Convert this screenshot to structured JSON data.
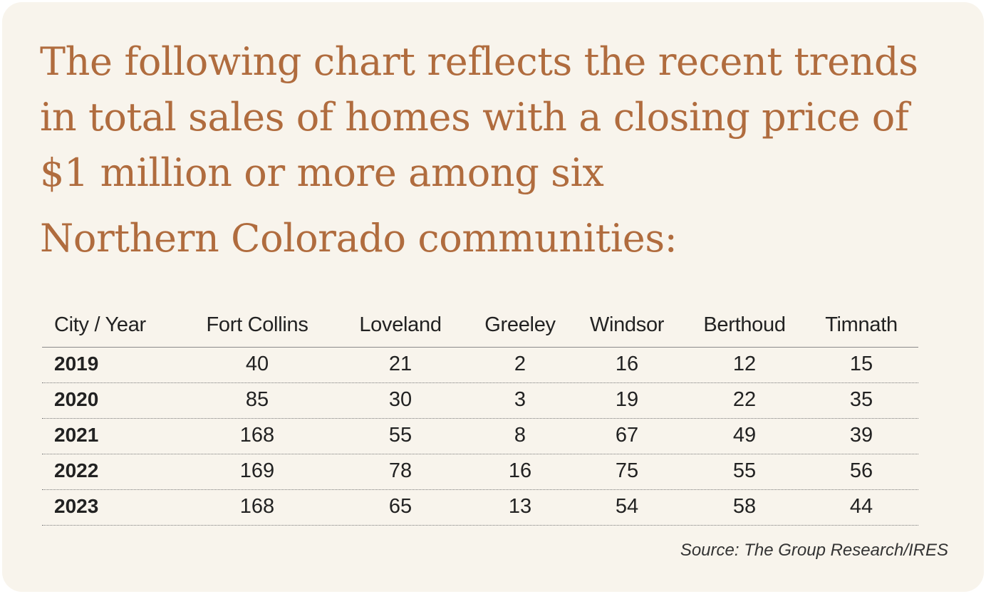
{
  "title_lines": [
    "The following chart reflects the recent trends",
    "in total sales of homes with a closing price of",
    "$1 million or more among six",
    "Northern Colorado communities:"
  ],
  "table": {
    "corner_label": "City / Year",
    "cities": [
      "Fort Collins",
      "Loveland",
      "Greeley",
      "Windsor",
      "Berthoud",
      "Timnath"
    ],
    "rows": [
      {
        "year": "2019",
        "values": [
          "40",
          "21",
          "2",
          "16",
          "12",
          "15"
        ]
      },
      {
        "year": "2020",
        "values": [
          "85",
          "30",
          "3",
          "19",
          "22",
          "35"
        ]
      },
      {
        "year": "2021",
        "values": [
          "168",
          "55",
          "8",
          "67",
          "49",
          "39"
        ]
      },
      {
        "year": "2022",
        "values": [
          "169",
          "78",
          "16",
          "75",
          "55",
          "56"
        ]
      },
      {
        "year": "2023",
        "values": [
          "168",
          "65",
          "13",
          "54",
          "58",
          "44"
        ]
      }
    ]
  },
  "source": "Source: The Group Research/IRES",
  "colors": {
    "title": "#b06c3e",
    "background": "#f8f4ec",
    "text": "#222222"
  },
  "chart_data": {
    "type": "table",
    "title": "The following chart reflects the recent trends in total sales of homes with a closing price of $1 million or more among six Northern Colorado communities:",
    "columns": [
      "City / Year",
      "Fort Collins",
      "Loveland",
      "Greeley",
      "Windsor",
      "Berthoud",
      "Timnath"
    ],
    "rows": [
      [
        "2019",
        40,
        21,
        2,
        16,
        12,
        15
      ],
      [
        "2020",
        85,
        30,
        3,
        19,
        22,
        35
      ],
      [
        "2021",
        168,
        55,
        8,
        67,
        49,
        39
      ],
      [
        "2022",
        169,
        78,
        16,
        75,
        55,
        56
      ],
      [
        "2023",
        168,
        65,
        13,
        54,
        58,
        44
      ]
    ],
    "source": "Source: The Group Research/IRES"
  }
}
